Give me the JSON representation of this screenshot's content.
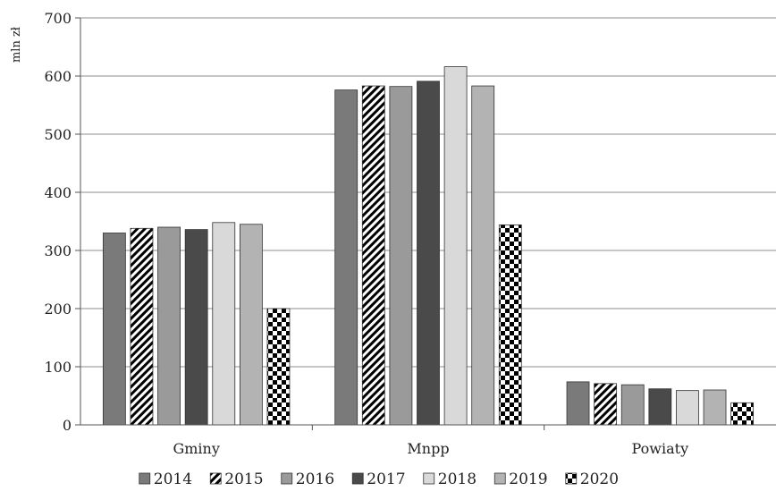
{
  "chart_data": {
    "type": "bar",
    "ylabel": "mln zł",
    "ylim": [
      0,
      700
    ],
    "yticks": [
      "0",
      "100",
      "200",
      "300",
      "400",
      "500",
      "600",
      "700"
    ],
    "grid": true,
    "legend_position": "bottom",
    "categories": [
      "Gminy",
      "Mnpp",
      "Powiaty"
    ],
    "series": [
      {
        "name": "2014",
        "values": [
          330,
          576,
          74
        ],
        "color": "#7a7a7a",
        "pattern": "solid"
      },
      {
        "name": "2015",
        "values": [
          338,
          583,
          71
        ],
        "color": "#000000",
        "pattern": "diagonal-hatch"
      },
      {
        "name": "2016",
        "values": [
          340,
          582,
          69
        ],
        "color": "#9a9a9a",
        "pattern": "solid"
      },
      {
        "name": "2017",
        "values": [
          336,
          591,
          62
        ],
        "color": "#4a4a4a",
        "pattern": "solid"
      },
      {
        "name": "2018",
        "values": [
          348,
          616,
          59
        ],
        "color": "#d9d9d9",
        "pattern": "solid"
      },
      {
        "name": "2019",
        "values": [
          345,
          583,
          60
        ],
        "color": "#b3b3b3",
        "pattern": "solid"
      },
      {
        "name": "2020",
        "values": [
          200,
          344,
          38
        ],
        "color": "#000000",
        "pattern": "checker"
      }
    ]
  }
}
